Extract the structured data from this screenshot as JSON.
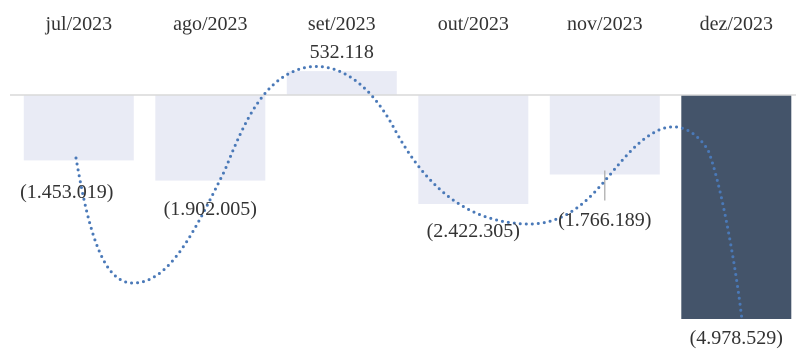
{
  "chart_data": {
    "type": "bar",
    "title": "",
    "xlabel": "",
    "ylabel": "",
    "categories": [
      "jul/2023",
      "ago/2023",
      "set/2023",
      "out/2023",
      "nov/2023",
      "dez/2023"
    ],
    "series": [
      {
        "values": [
          -1453019,
          -1902005,
          532118,
          -2422305,
          -1766189,
          -4978529
        ],
        "labels": [
          "(1.453.019)",
          "(1.902.005)",
          "532.118",
          "(2.422.305)",
          "(1.766.189)",
          "(4.978.529)"
        ]
      }
    ],
    "highlight_index": 5,
    "trend_line": "dotted smooth curve through bar values",
    "grid": false,
    "legend": "none",
    "colors": {
      "bar": "#e9ebf5",
      "highlight_bar": "#44546a",
      "trend_line": "#4a79b8",
      "baseline": "#d9d9d9",
      "text": "#333333"
    }
  }
}
